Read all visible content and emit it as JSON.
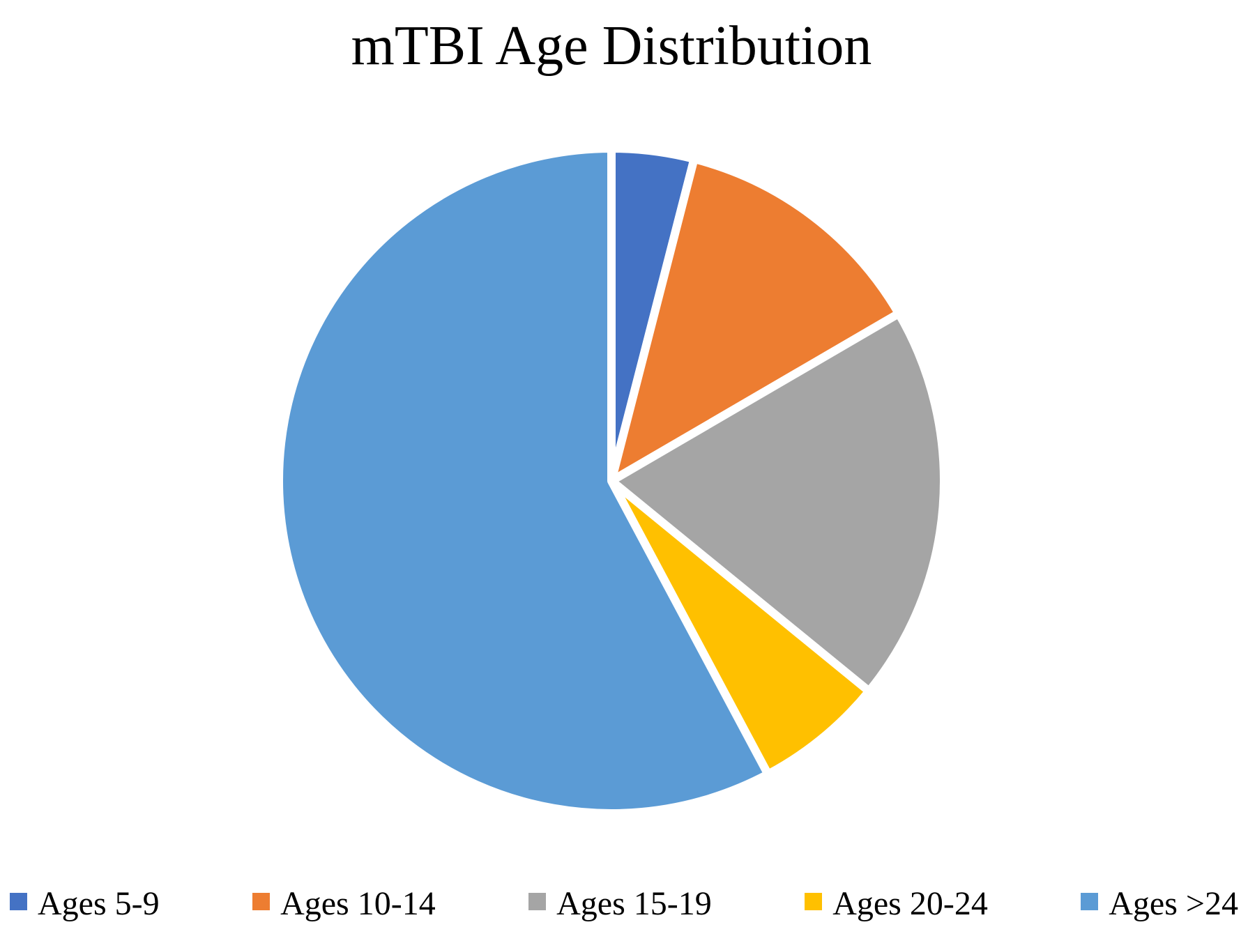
{
  "chart": {
    "title": "mTBI Age Distribution"
  },
  "chart_data": {
    "type": "pie",
    "title": "mTBI Age Distribution",
    "series": [
      {
        "label": "Ages 5-9",
        "percent": 4.0,
        "color": "#4472C4"
      },
      {
        "label": "Ages 10-14",
        "percent": 12.6,
        "color": "#ED7D31"
      },
      {
        "label": "Ages 15-19",
        "percent": 19.3,
        "color": "#A5A5A5"
      },
      {
        "label": "Ages 20-24",
        "percent": 6.3,
        "color": "#FFC000"
      },
      {
        "label": "Ages >24",
        "percent": 57.8,
        "color": "#5B9BD5"
      }
    ],
    "start_angle_deg": 0,
    "direction": "clockwise",
    "slice_separator_color": "#FFFFFF",
    "legend_position": "bottom",
    "background_color": "#FFFFFF",
    "text_color": "#000000"
  }
}
